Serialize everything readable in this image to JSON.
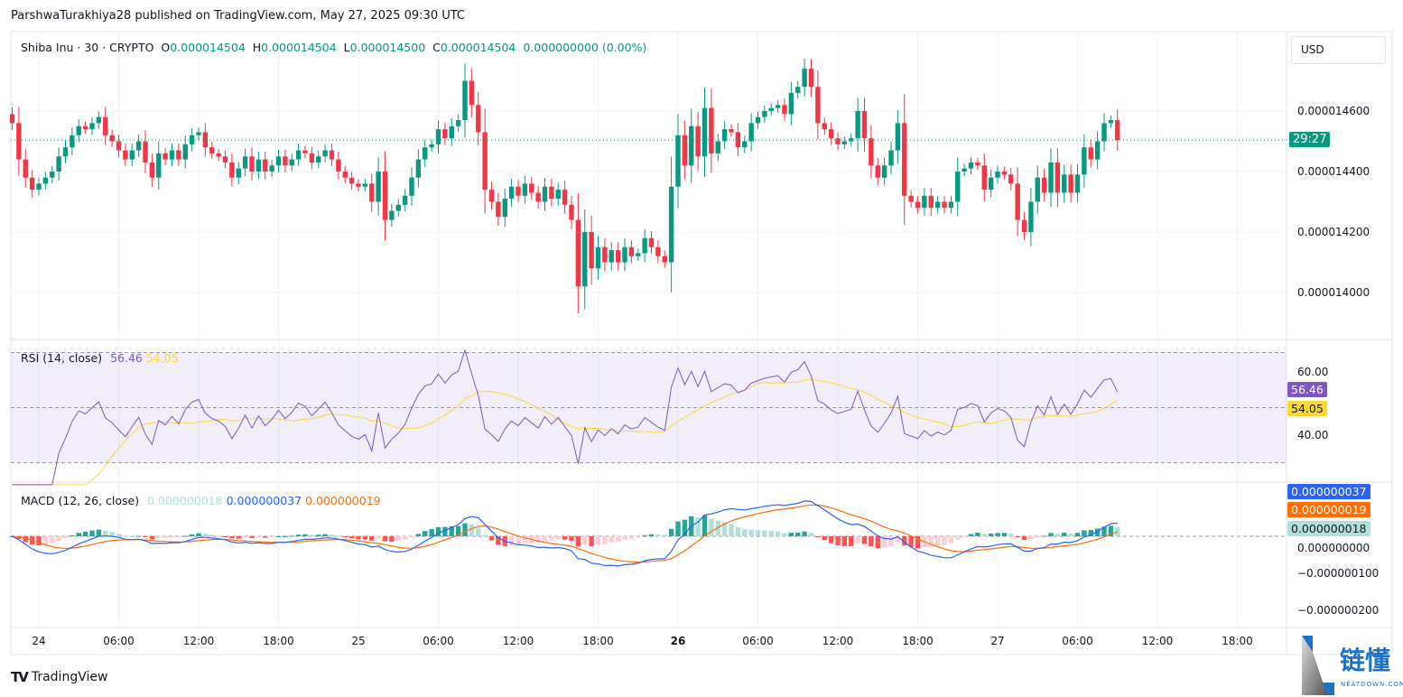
{
  "publisher_line": "ParshwaTurakhiya28 published on TradingView.com, May 27, 2025 09:30 UTC",
  "legend": {
    "symbol": "Shiba Inu · 30 · CRYPTO",
    "o_label": "O",
    "o": "0.000014504",
    "h_label": "H",
    "h": "0.000014504",
    "l_label": "L",
    "l": "0.000014500",
    "c_label": "C",
    "c": "0.000014504",
    "change": "0.000000000 (0.00%)"
  },
  "currency_button": "USD",
  "countdown": "29:27",
  "price_axis": [
    "0.000014600",
    "0.000014400",
    "0.000014200",
    "0.000014000"
  ],
  "rsi": {
    "title": "RSI (14, close)",
    "value": "56.46",
    "ma": "54.05",
    "axis": [
      "60.00",
      "40.00"
    ]
  },
  "macd": {
    "title": "MACD (12, 26, close)",
    "hist": "0.000000018",
    "macd": "0.000000037",
    "signal": "0.000000019",
    "axis": [
      "0.000000000",
      "−0.000000100",
      "−0.000000200"
    ]
  },
  "time_axis": [
    {
      "label": "24",
      "bold": false
    },
    {
      "label": "06:00"
    },
    {
      "label": "12:00"
    },
    {
      "label": "18:00"
    },
    {
      "label": "25"
    },
    {
      "label": "06:00"
    },
    {
      "label": "12:00"
    },
    {
      "label": "18:00"
    },
    {
      "label": "26",
      "bold": true
    },
    {
      "label": "06:00"
    },
    {
      "label": "12:00"
    },
    {
      "label": "18:00"
    },
    {
      "label": "27"
    },
    {
      "label": "06:00"
    },
    {
      "label": "12:00"
    },
    {
      "label": "18:00"
    }
  ],
  "footer_brand": "TradingView",
  "watermark": {
    "cn": "链懂",
    "en": "NEATDOWN.COM"
  },
  "colors": {
    "up": "#089981",
    "down": "#f23645",
    "rsi": "#7e57c2",
    "rsi_ma": "#fdd835",
    "macd": "#2962ff",
    "signal": "#ff6d00",
    "hist_up": "#26a69a",
    "hist_up_fade": "#b2dfdb",
    "hist_down": "#ff5252",
    "hist_down_fade": "#ffcdd2"
  },
  "chart_data": {
    "type": "candlestick",
    "interval": "30m",
    "start": "2025-05-23 22:00 UTC",
    "price_range": [
      1.39e-05,
      1.48e-05
    ],
    "last_price": 1.4504e-05,
    "closes": [
      1.456e-05,
      1.444e-05,
      1.438e-05,
      1.434e-05,
      1.436e-05,
      1.438e-05,
      1.44e-05,
      1.445e-05,
      1.448e-05,
      1.452e-05,
      1.455e-05,
      1.454e-05,
      1.456e-05,
      1.458e-05,
      1.452e-05,
      1.45e-05,
      1.447e-05,
      1.444e-05,
      1.447e-05,
      1.45e-05,
      1.443e-05,
      1.438e-05,
      1.446e-05,
      1.444e-05,
      1.447e-05,
      1.444e-05,
      1.449e-05,
      1.452e-05,
      1.453e-05,
      1.448e-05,
      1.446e-05,
      1.445e-05,
      1.443e-05,
      1.438e-05,
      1.441e-05,
      1.445e-05,
      1.44e-05,
      1.444e-05,
      1.44e-05,
      1.442e-05,
      1.445e-05,
      1.442e-05,
      1.444e-05,
      1.447e-05,
      1.446e-05,
      1.443e-05,
      1.445e-05,
      1.447e-05,
      1.444e-05,
      1.44e-05,
      1.438e-05,
      1.436e-05,
      1.435e-05,
      1.436e-05,
      1.43e-05,
      1.44e-05,
      1.424e-05,
      1.427e-05,
      1.429e-05,
      1.432e-05,
      1.438e-05,
      1.444e-05,
      1.448e-05,
      1.449e-05,
      1.454e-05,
      1.451e-05,
      1.455e-05,
      1.457e-05,
      1.47e-05,
      1.462e-05,
      1.453e-05,
      1.434e-05,
      1.43e-05,
      1.425e-05,
      1.431e-05,
      1.435e-05,
      1.432e-05,
      1.436e-05,
      1.433e-05,
      1.43e-05,
      1.435e-05,
      1.431e-05,
      1.434e-05,
      1.429e-05,
      1.424e-05,
      1.402e-05,
      1.42e-05,
      1.408e-05,
      1.415e-05,
      1.41e-05,
      1.414e-05,
      1.41e-05,
      1.415e-05,
      1.412e-05,
      1.413e-05,
      1.418e-05,
      1.415e-05,
      1.412e-05,
      1.41e-05,
      1.435e-05,
      1.452e-05,
      1.442e-05,
      1.455e-05,
      1.445e-05,
      1.461e-05,
      1.446e-05,
      1.45e-05,
      1.454e-05,
      1.453e-05,
      1.448e-05,
      1.45e-05,
      1.456e-05,
      1.458e-05,
      1.46e-05,
      1.461e-05,
      1.462e-05,
      1.459e-05,
      1.466e-05,
      1.468e-05,
      1.474e-05,
      1.468e-05,
      1.456e-05,
      1.454e-05,
      1.451e-05,
      1.449e-05,
      1.45e-05,
      1.451e-05,
      1.46e-05,
      1.451e-05,
      1.442e-05,
      1.438e-05,
      1.442e-05,
      1.447e-05,
      1.456e-05,
      1.432e-05,
      1.43e-05,
      1.428e-05,
      1.432e-05,
      1.428e-05,
      1.43e-05,
      1.428e-05,
      1.43e-05,
      1.44e-05,
      1.441e-05,
      1.443e-05,
      1.442e-05,
      1.434e-05,
      1.438e-05,
      1.44e-05,
      1.439e-05,
      1.436e-05,
      1.424e-05,
      1.42e-05,
      1.43e-05,
      1.438e-05,
      1.433e-05,
      1.443e-05,
      1.433e-05,
      1.439e-05,
      1.433e-05,
      1.439e-05,
      1.448e-05,
      1.444e-05,
      1.45e-05,
      1.456e-05,
      1.457e-05,
      1.4504e-05
    ],
    "indicators": [
      "RSI (14, close)",
      "MACD (12, 26, close)"
    ]
  }
}
